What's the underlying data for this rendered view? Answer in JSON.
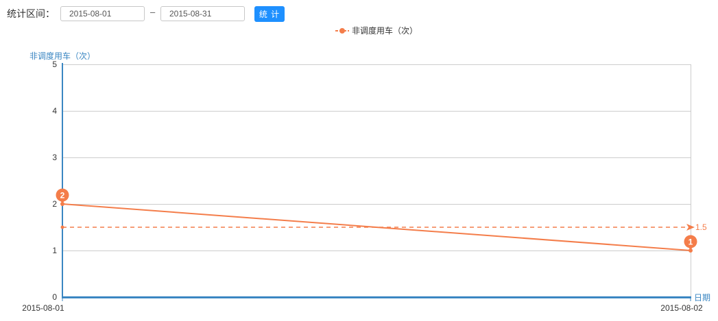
{
  "filter": {
    "range_label": "统计区间：",
    "start_date": "2015-08-01",
    "separator": "–",
    "end_date": "2015-08-31",
    "submit_label": "统 计"
  },
  "colors": {
    "series": "#f47d4a",
    "axis": "#3a86c2",
    "grid": "#cccccc",
    "button": "#1e90ff"
  },
  "chart_data": {
    "type": "line",
    "legend": {
      "position": "top-center",
      "entries": [
        "非调度用车（次）"
      ]
    },
    "ylabel": "非调度用车（次）",
    "xlabel": "日期",
    "categories": [
      "2015-08-01",
      "2015-08-02"
    ],
    "yticks": [
      "0",
      "1",
      "2",
      "3",
      "4",
      "5"
    ],
    "ylim": [
      0,
      5
    ],
    "grid": true,
    "series": [
      {
        "name": "非调度用车（次）",
        "values": [
          2,
          1
        ],
        "max_label": "2",
        "min_label": "1",
        "average": 1.5,
        "average_label": "1.5"
      }
    ]
  }
}
